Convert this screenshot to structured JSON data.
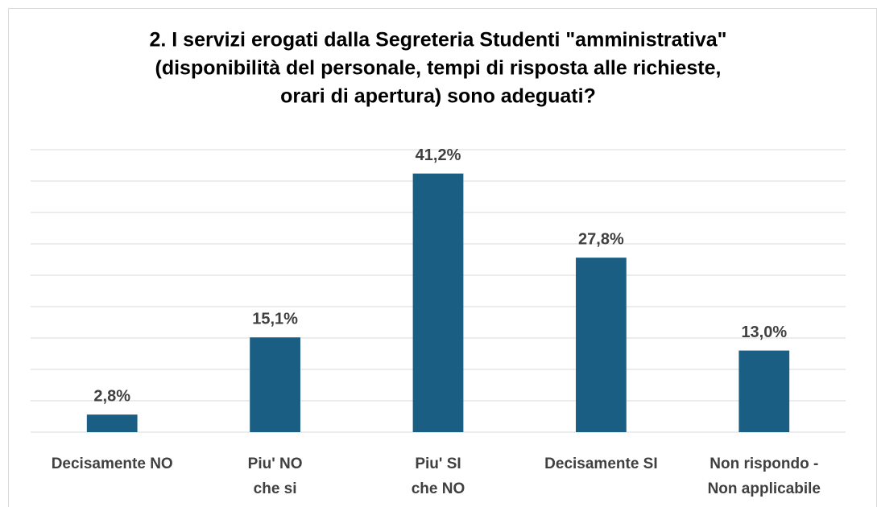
{
  "chart_data": {
    "type": "bar",
    "title": [
      "2. I servizi erogati dalla Segreteria Studenti \"amministrativa\"",
      "(disponibilità del personale, tempi di risposta alle richieste,",
      "orari di apertura) sono adeguati?"
    ],
    "categories": [
      [
        "Decisamente NO"
      ],
      [
        "Piu' NO",
        "che si"
      ],
      [
        "Piu' SI",
        "che NO"
      ],
      [
        "Decisamente SI"
      ],
      [
        "Non rispondo -",
        "Non applicabile"
      ]
    ],
    "values": [
      2.8,
      15.1,
      41.2,
      27.8,
      13.0
    ],
    "value_labels": [
      "2,8%",
      "15,1%",
      "41,2%",
      "27,8%",
      "13,0%"
    ],
    "color": "#1a5f83",
    "ylim": [
      0,
      45
    ],
    "yticks": [
      0,
      5,
      10,
      15,
      20,
      25,
      30,
      35,
      40,
      45
    ],
    "grid": true
  }
}
